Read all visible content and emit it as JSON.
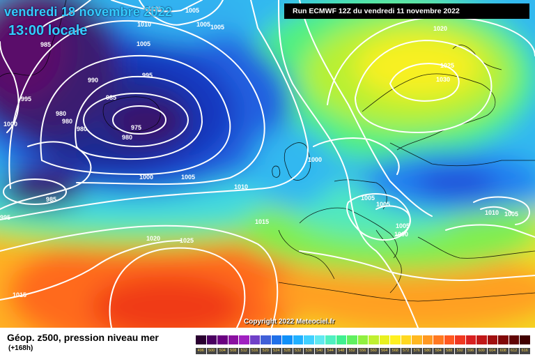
{
  "header": {
    "date": "vendredi 18 novembre 2022",
    "time": "13:00 locale",
    "run": "Run ECMWF 12Z du vendredi 11 novembre 2022"
  },
  "copyright": "Copyright 2022 Meteociel.fr",
  "legend": {
    "title": "Géop. z500, pression niveau mer",
    "subtitle": "(+168h)",
    "ticks": [
      "496",
      "500",
      "504",
      "508",
      "512",
      "516",
      "520",
      "524",
      "528",
      "532",
      "536",
      "540",
      "544",
      "548",
      "552",
      "556",
      "560",
      "564",
      "568",
      "572",
      "576",
      "580",
      "584",
      "588",
      "592",
      "596",
      "600",
      "604",
      "608",
      "612",
      "616"
    ],
    "colors": [
      "#2a0030",
      "#4a0060",
      "#6a0080",
      "#8a10a0",
      "#a020c0",
      "#7040c8",
      "#4060d8",
      "#2070e8",
      "#1090f8",
      "#20b0ff",
      "#40d0ff",
      "#60e8f0",
      "#50f0c0",
      "#40f090",
      "#60f060",
      "#90f040",
      "#c0f030",
      "#e8f020",
      "#fff020",
      "#ffd820",
      "#ffb820",
      "#ff9820",
      "#ff7820",
      "#ff5820",
      "#f03820",
      "#d82020",
      "#c01818",
      "#a01010",
      "#800808",
      "#600404",
      "#400000"
    ]
  },
  "pressure_labels": [
    {
      "id": "p1000a",
      "text": "1000"
    },
    {
      "id": "p1005a",
      "text": "1005"
    },
    {
      "id": "p1005b",
      "text": "1005"
    },
    {
      "id": "p1010a",
      "text": "1010"
    },
    {
      "id": "p1005c",
      "text": "1005"
    },
    {
      "id": "p985a",
      "text": "985"
    },
    {
      "id": "p1005d",
      "text": "1005"
    },
    {
      "id": "p995a",
      "text": "995"
    },
    {
      "id": "p990",
      "text": "990"
    },
    {
      "id": "p985b",
      "text": "985"
    },
    {
      "id": "p995b",
      "text": "995"
    },
    {
      "id": "p1000b",
      "text": "1000"
    },
    {
      "id": "p980a",
      "text": "980"
    },
    {
      "id": "p980b",
      "text": "980"
    },
    {
      "id": "p980c",
      "text": "980"
    },
    {
      "id": "p975",
      "text": "975"
    },
    {
      "id": "p980d",
      "text": "980"
    },
    {
      "id": "p1000c",
      "text": "1000"
    },
    {
      "id": "p1005e",
      "text": "1005"
    },
    {
      "id": "p1010b",
      "text": "1010"
    },
    {
      "id": "p985c",
      "text": "985"
    },
    {
      "id": "p995c",
      "text": "995"
    },
    {
      "id": "p1015a",
      "text": "1015"
    },
    {
      "id": "p1020a",
      "text": "1020"
    },
    {
      "id": "p1025a",
      "text": "1025"
    },
    {
      "id": "p1015b",
      "text": "1015"
    },
    {
      "id": "p1020b",
      "text": "1020"
    },
    {
      "id": "p1025b",
      "text": "1025"
    },
    {
      "id": "p1030",
      "text": "1030"
    },
    {
      "id": "p1000d",
      "text": "1000"
    },
    {
      "id": "p1005f",
      "text": "1005"
    },
    {
      "id": "p1005g",
      "text": "1005"
    },
    {
      "id": "p1005h",
      "text": "1005"
    },
    {
      "id": "p1000e",
      "text": "1000"
    },
    {
      "id": "p1010c",
      "text": "1010"
    },
    {
      "id": "p1005i",
      "text": "1005"
    }
  ]
}
